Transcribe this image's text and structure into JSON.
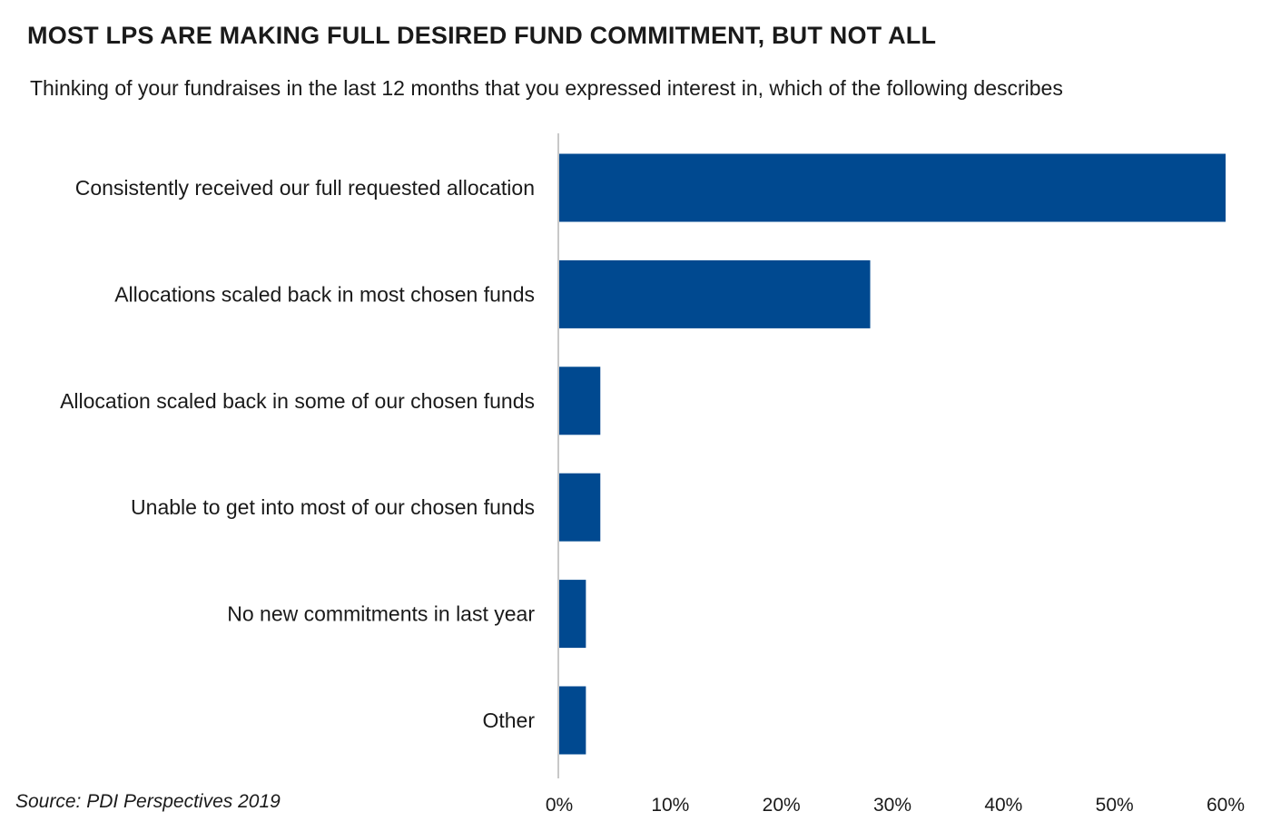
{
  "title": "MOST LPS ARE MAKING FULL DESIRED FUND COMMITMENT, BUT NOT ALL",
  "subtitle": "Thinking of your fundraises in the last 12 months that you expressed interest in, which of the following describes",
  "source": "Source: PDI Perspectives 2019",
  "colors": {
    "bar": "#004990",
    "axis": "#c8c8c8"
  },
  "chart_data": {
    "type": "bar",
    "orientation": "horizontal",
    "categories": [
      "Consistently received our full requested allocation",
      "Allocations scaled back in most chosen funds",
      "Allocation scaled back in some of our chosen funds",
      "Unable to get into most of our chosen funds",
      "No new commitments in last year",
      "Other"
    ],
    "values": [
      60,
      28,
      3.7,
      3.7,
      2.4,
      2.4
    ],
    "xlim": [
      0,
      60
    ],
    "xticks": [
      0,
      10,
      20,
      30,
      40,
      50,
      60
    ],
    "xtick_labels": [
      "0%",
      "10%",
      "20%",
      "30%",
      "40%",
      "50%",
      "60%"
    ],
    "grid": false,
    "legend": "none"
  }
}
